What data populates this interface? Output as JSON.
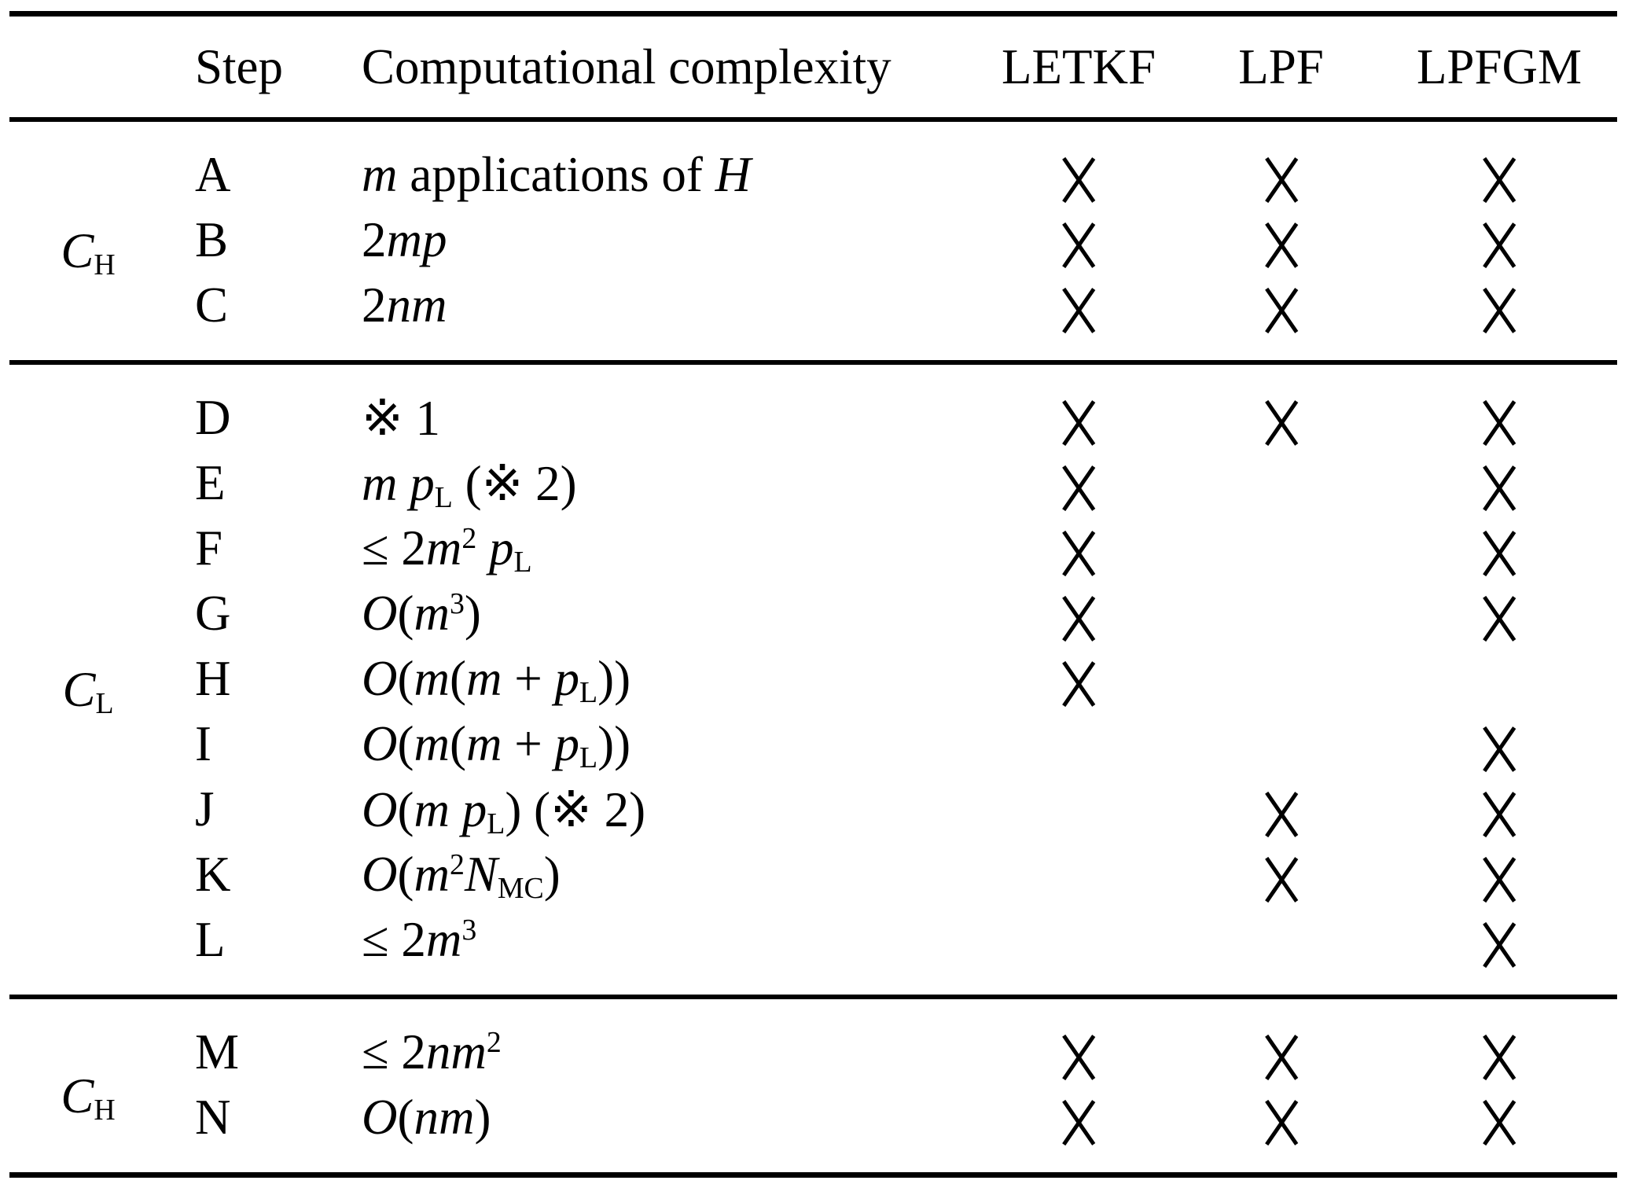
{
  "colors": {
    "ink": "#000000",
    "background": "#ffffff"
  },
  "icons": {
    "mark": "x-mark",
    "reference_mark_glyph": "※"
  },
  "table": {
    "columns": {
      "group": "",
      "step": "Step",
      "complexity": "Computational complexity",
      "methods": [
        "LETKF",
        "LPF",
        "LPFGM"
      ]
    },
    "groups": [
      {
        "label_text": "C_H",
        "label": [
          {
            "t": "C",
            "s": "i"
          },
          {
            "t": "H",
            "s": "sub"
          }
        ],
        "rows": [
          {
            "step": "A",
            "complexity_text": "m applications of H",
            "complexity": [
              {
                "t": "m",
                "s": "i"
              },
              {
                "t": " applications of ",
                "s": "r"
              },
              {
                "t": "H",
                "s": "i"
              }
            ],
            "marks": [
              1,
              1,
              1
            ]
          },
          {
            "step": "B",
            "complexity_text": "2mp",
            "complexity": [
              {
                "t": "2",
                "s": "r"
              },
              {
                "t": "mp",
                "s": "i"
              }
            ],
            "marks": [
              1,
              1,
              1
            ]
          },
          {
            "step": "C",
            "complexity_text": "2nm",
            "complexity": [
              {
                "t": "2",
                "s": "r"
              },
              {
                "t": "nm",
                "s": "i"
              }
            ],
            "marks": [
              1,
              1,
              1
            ]
          }
        ]
      },
      {
        "label_text": "C_L",
        "label": [
          {
            "t": "C",
            "s": "i"
          },
          {
            "t": "L",
            "s": "sub"
          }
        ],
        "rows": [
          {
            "step": "D",
            "complexity_text": "※ 1",
            "complexity": [
              {
                "t": "※ 1",
                "s": "r"
              }
            ],
            "marks": [
              1,
              1,
              1
            ]
          },
          {
            "step": "E",
            "complexity_text": "m pL (※ 2)",
            "complexity": [
              {
                "t": "m",
                "s": "i"
              },
              {
                "t": " ",
                "s": "r"
              },
              {
                "t": "p",
                "s": "i"
              },
              {
                "t": "L",
                "s": "sub"
              },
              {
                "t": " (※ 2)",
                "s": "r"
              }
            ],
            "marks": [
              1,
              0,
              1
            ]
          },
          {
            "step": "F",
            "complexity_text": "≤ 2m²pL",
            "complexity": [
              {
                "t": "≤ 2",
                "s": "r"
              },
              {
                "t": "m",
                "s": "i"
              },
              {
                "t": "2",
                "s": "sup"
              },
              {
                "t": " ",
                "s": "r"
              },
              {
                "t": "p",
                "s": "i"
              },
              {
                "t": "L",
                "s": "sub"
              }
            ],
            "marks": [
              1,
              0,
              1
            ]
          },
          {
            "step": "G",
            "complexity_text": "O(m³)",
            "complexity": [
              {
                "t": "O",
                "s": "i"
              },
              {
                "t": "(",
                "s": "r"
              },
              {
                "t": "m",
                "s": "i"
              },
              {
                "t": "3",
                "s": "sup"
              },
              {
                "t": ")",
                "s": "r"
              }
            ],
            "marks": [
              1,
              0,
              1
            ]
          },
          {
            "step": "H",
            "complexity_text": "O(m(m + pL))",
            "complexity": [
              {
                "t": "O",
                "s": "i"
              },
              {
                "t": "(",
                "s": "r"
              },
              {
                "t": "m",
                "s": "i"
              },
              {
                "t": "(",
                "s": "r"
              },
              {
                "t": "m",
                "s": "i"
              },
              {
                "t": " + ",
                "s": "r"
              },
              {
                "t": "p",
                "s": "i"
              },
              {
                "t": "L",
                "s": "sub"
              },
              {
                "t": "))",
                "s": "r"
              }
            ],
            "marks": [
              1,
              0,
              0
            ]
          },
          {
            "step": "I",
            "complexity_text": "O(m(m + pL))",
            "complexity": [
              {
                "t": "O",
                "s": "i"
              },
              {
                "t": "(",
                "s": "r"
              },
              {
                "t": "m",
                "s": "i"
              },
              {
                "t": "(",
                "s": "r"
              },
              {
                "t": "m",
                "s": "i"
              },
              {
                "t": " + ",
                "s": "r"
              },
              {
                "t": "p",
                "s": "i"
              },
              {
                "t": "L",
                "s": "sub"
              },
              {
                "t": "))",
                "s": "r"
              }
            ],
            "marks": [
              0,
              0,
              1
            ]
          },
          {
            "step": "J",
            "complexity_text": "O(m pL) (※ 2)",
            "complexity": [
              {
                "t": "O",
                "s": "i"
              },
              {
                "t": "(",
                "s": "r"
              },
              {
                "t": "m",
                "s": "i"
              },
              {
                "t": " ",
                "s": "r"
              },
              {
                "t": "p",
                "s": "i"
              },
              {
                "t": "L",
                "s": "sub"
              },
              {
                "t": ") (※ 2)",
                "s": "r"
              }
            ],
            "marks": [
              0,
              1,
              1
            ]
          },
          {
            "step": "K",
            "complexity_text": "O(m²NMC)",
            "complexity": [
              {
                "t": "O",
                "s": "i"
              },
              {
                "t": "(",
                "s": "r"
              },
              {
                "t": "m",
                "s": "i"
              },
              {
                "t": "2",
                "s": "sup"
              },
              {
                "t": "N",
                "s": "i"
              },
              {
                "t": "MC",
                "s": "sub"
              },
              {
                "t": ")",
                "s": "r"
              }
            ],
            "marks": [
              0,
              1,
              1
            ]
          },
          {
            "step": "L",
            "complexity_text": "≤ 2m³",
            "complexity": [
              {
                "t": "≤ 2",
                "s": "r"
              },
              {
                "t": "m",
                "s": "i"
              },
              {
                "t": "3",
                "s": "sup"
              }
            ],
            "marks": [
              0,
              0,
              1
            ]
          }
        ]
      },
      {
        "label_text": "C_H",
        "label": [
          {
            "t": "C",
            "s": "i"
          },
          {
            "t": "H",
            "s": "sub"
          }
        ],
        "rows": [
          {
            "step": "M",
            "complexity_text": "≤ 2nm²",
            "complexity": [
              {
                "t": "≤ 2",
                "s": "r"
              },
              {
                "t": "nm",
                "s": "i"
              },
              {
                "t": "2",
                "s": "sup"
              }
            ],
            "marks": [
              1,
              1,
              1
            ]
          },
          {
            "step": "N",
            "complexity_text": "O(nm)",
            "complexity": [
              {
                "t": "O",
                "s": "i"
              },
              {
                "t": "(",
                "s": "r"
              },
              {
                "t": "nm",
                "s": "i"
              },
              {
                "t": ")",
                "s": "r"
              }
            ],
            "marks": [
              1,
              1,
              1
            ]
          }
        ]
      }
    ]
  }
}
